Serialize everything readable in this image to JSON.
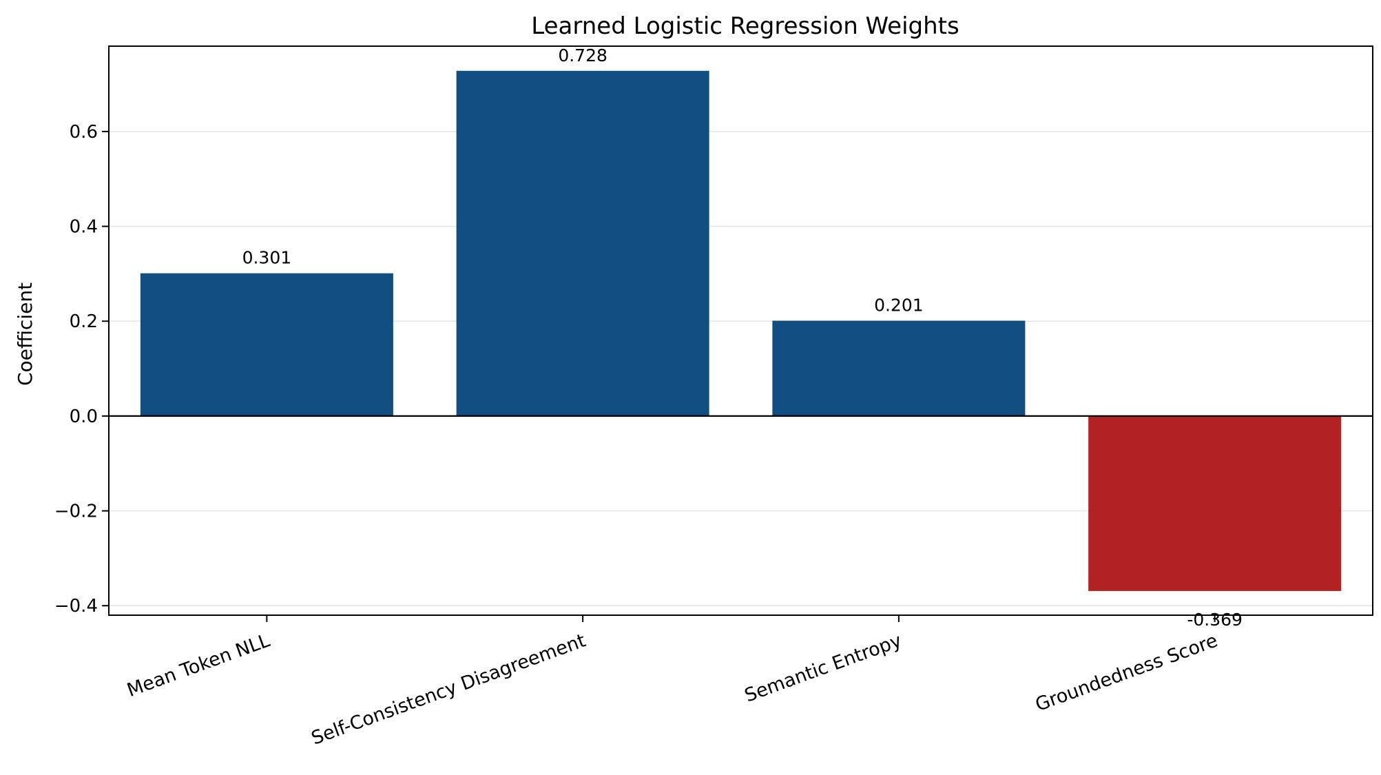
{
  "chart_data": {
    "type": "bar",
    "title": "Learned Logistic Regression Weights",
    "xlabel": "",
    "ylabel": "Coefficient",
    "categories": [
      "Mean Token NLL",
      "Self-Consistency Disagreement",
      "Semantic Entropy",
      "Groundedness Score"
    ],
    "values": [
      0.301,
      0.728,
      0.201,
      -0.369
    ],
    "value_labels": [
      "0.301",
      "0.728",
      "0.201",
      "-0.369"
    ],
    "ylim": [
      -0.42,
      0.78
    ],
    "yticks": [
      -0.4,
      -0.2,
      0.0,
      0.2,
      0.4,
      0.6
    ],
    "ytick_labels": [
      "−0.4",
      "−0.2",
      "0.0",
      "0.2",
      "0.4",
      "0.6"
    ],
    "grid": "horizontal",
    "legend": "none",
    "colors": {
      "positive": "#114e81",
      "negative": "#b22222"
    }
  }
}
